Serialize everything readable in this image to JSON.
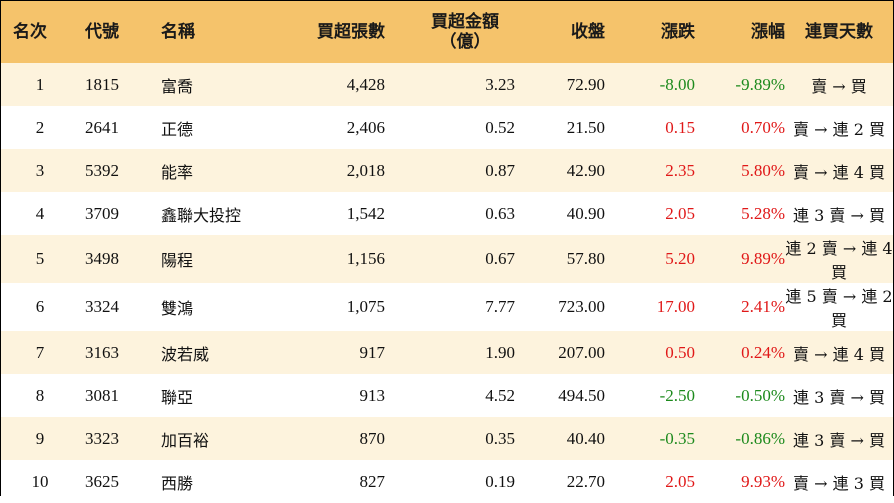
{
  "headers": {
    "rank": "名次",
    "code": "代號",
    "name": "名稱",
    "volume": "買超張數",
    "amount_line1": "買超金額",
    "amount_line2": "（億）",
    "close": "收盤",
    "change": "漲跌",
    "pct": "漲幅",
    "streak": "連買天數"
  },
  "colors": {
    "header_bg": "#f5c36b",
    "stripe_bg": "#fdf3dd",
    "up": "#e01818",
    "down": "#1d8a1d"
  },
  "rows": [
    {
      "rank": "1",
      "code": "1815",
      "name": "富喬",
      "volume": "4,428",
      "amount": "3.23",
      "close": "72.90",
      "change": "-8.00",
      "pct": "-9.89%",
      "dir": "neg",
      "streak": "賣 → 買"
    },
    {
      "rank": "2",
      "code": "2641",
      "name": "正德",
      "volume": "2,406",
      "amount": "0.52",
      "close": "21.50",
      "change": "0.15",
      "pct": "0.70%",
      "dir": "pos",
      "streak": "賣 → 連 2 買"
    },
    {
      "rank": "3",
      "code": "5392",
      "name": "能率",
      "volume": "2,018",
      "amount": "0.87",
      "close": "42.90",
      "change": "2.35",
      "pct": "5.80%",
      "dir": "pos",
      "streak": "賣 → 連 4 買"
    },
    {
      "rank": "4",
      "code": "3709",
      "name": "鑫聯大投控",
      "volume": "1,542",
      "amount": "0.63",
      "close": "40.90",
      "change": "2.05",
      "pct": "5.28%",
      "dir": "pos",
      "streak": "連 3 賣 → 買"
    },
    {
      "rank": "5",
      "code": "3498",
      "name": "陽程",
      "volume": "1,156",
      "amount": "0.67",
      "close": "57.80",
      "change": "5.20",
      "pct": "9.89%",
      "dir": "pos",
      "streak": "連 2 賣 → 連 4 買"
    },
    {
      "rank": "6",
      "code": "3324",
      "name": "雙鴻",
      "volume": "1,075",
      "amount": "7.77",
      "close": "723.00",
      "change": "17.00",
      "pct": "2.41%",
      "dir": "pos",
      "streak": "連 5 賣 → 連 2 買"
    },
    {
      "rank": "7",
      "code": "3163",
      "name": "波若威",
      "volume": "917",
      "amount": "1.90",
      "close": "207.00",
      "change": "0.50",
      "pct": "0.24%",
      "dir": "pos",
      "streak": "賣 → 連 4 買"
    },
    {
      "rank": "8",
      "code": "3081",
      "name": "聯亞",
      "volume": "913",
      "amount": "4.52",
      "close": "494.50",
      "change": "-2.50",
      "pct": "-0.50%",
      "dir": "neg",
      "streak": "連 3 賣 → 買"
    },
    {
      "rank": "9",
      "code": "3323",
      "name": "加百裕",
      "volume": "870",
      "amount": "0.35",
      "close": "40.40",
      "change": "-0.35",
      "pct": "-0.86%",
      "dir": "neg",
      "streak": "連 3 賣 → 買"
    },
    {
      "rank": "10",
      "code": "3625",
      "name": "西勝",
      "volume": "827",
      "amount": "0.19",
      "close": "22.70",
      "change": "2.05",
      "pct": "9.93%",
      "dir": "pos",
      "streak": "賣 → 連 3 買"
    }
  ]
}
